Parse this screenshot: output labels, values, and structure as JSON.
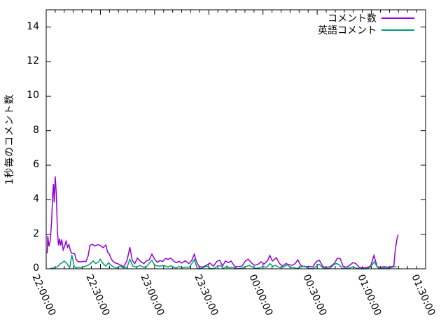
{
  "chart_data": {
    "type": "line",
    "title": "",
    "xlabel": "",
    "ylabel": "1秒毎のコメント数",
    "grid": false,
    "legend_position": "top-right-inside",
    "background_color": "#ffffff",
    "border_color": "#000000",
    "x_axis": {
      "unit": "time (hh:mm:ss)",
      "range_minutes": [
        0,
        210
      ],
      "tick_minutes": [
        0,
        30,
        60,
        90,
        120,
        150,
        180,
        210
      ],
      "tick_labels": [
        "22:00:00",
        "22:30:00",
        "23:00:00",
        "23:30:00",
        "00:00:00",
        "00:30:00",
        "01:00:00",
        "01:30:00"
      ],
      "minor_tick_interval_minutes": 5,
      "tick_label_rotation_deg": 66
    },
    "y_axis": {
      "range": [
        0,
        15
      ],
      "ticks": [
        0,
        2,
        4,
        6,
        8,
        10,
        12,
        14
      ]
    },
    "series": [
      {
        "name": "コメント数",
        "color": "#9400d3",
        "points_t_minutes_after_2200_vs_value": [
          [
            0.6,
            0.9
          ],
          [
            0.9,
            1.9
          ],
          [
            1.5,
            1.3
          ],
          [
            2.2,
            1.6
          ],
          [
            3.0,
            2.7
          ],
          [
            3.6,
            4.3
          ],
          [
            4.0,
            4.9
          ],
          [
            4.4,
            3.85
          ],
          [
            5.0,
            5.35
          ],
          [
            5.6,
            4.3
          ],
          [
            6.2,
            2.2
          ],
          [
            6.8,
            1.35
          ],
          [
            7.4,
            1.75
          ],
          [
            8.0,
            1.35
          ],
          [
            8.6,
            1.7
          ],
          [
            9.4,
            1.1
          ],
          [
            10.2,
            1.3
          ],
          [
            11.0,
            1.6
          ],
          [
            11.8,
            1.25
          ],
          [
            12.6,
            1.4
          ],
          [
            13.4,
            1.05
          ],
          [
            14.2,
            0.88
          ],
          [
            15.0,
            0.9
          ],
          [
            15.8,
            0.85
          ],
          [
            16.5,
            0.55
          ],
          [
            17.5,
            0.42
          ],
          [
            19,
            0.4
          ],
          [
            20.5,
            0.43
          ],
          [
            22,
            0.42
          ],
          [
            23.2,
            0.75
          ],
          [
            24.2,
            1.35
          ],
          [
            25.5,
            1.42
          ],
          [
            27,
            1.32
          ],
          [
            28.5,
            1.4
          ],
          [
            30,
            1.35
          ],
          [
            31.5,
            1.22
          ],
          [
            33,
            1.38
          ],
          [
            34,
            0.95
          ],
          [
            34.8,
            0.89
          ],
          [
            35.8,
            0.62
          ],
          [
            36.8,
            0.45
          ],
          [
            38,
            0.35
          ],
          [
            39.5,
            0.3
          ],
          [
            41,
            0.22
          ],
          [
            43,
            0.12
          ],
          [
            44.8,
            0.5
          ],
          [
            46.3,
            1.25
          ],
          [
            47.6,
            0.5
          ],
          [
            49,
            0.3
          ],
          [
            50.5,
            0.62
          ],
          [
            52,
            0.45
          ],
          [
            54,
            0.3
          ],
          [
            55.5,
            0.45
          ],
          [
            57,
            0.52
          ],
          [
            58.5,
            0.85
          ],
          [
            60,
            0.55
          ],
          [
            61.5,
            0.38
          ],
          [
            63,
            0.48
          ],
          [
            64.5,
            0.42
          ],
          [
            66,
            0.6
          ],
          [
            67.5,
            0.55
          ],
          [
            69,
            0.62
          ],
          [
            70.5,
            0.45
          ],
          [
            72,
            0.35
          ],
          [
            73.5,
            0.44
          ],
          [
            75,
            0.33
          ],
          [
            77,
            0.46
          ],
          [
            79,
            0.3
          ],
          [
            80.6,
            0.5
          ],
          [
            82,
            0.85
          ],
          [
            83.2,
            0.4
          ],
          [
            84.6,
            0.13
          ],
          [
            86.6,
            0.1
          ],
          [
            88.6,
            0.2
          ],
          [
            90.6,
            0.33
          ],
          [
            92.6,
            0.15
          ],
          [
            94.4,
            0.42
          ],
          [
            96,
            0.5
          ],
          [
            97.6,
            0.16
          ],
          [
            99.2,
            0.45
          ],
          [
            100.8,
            0.36
          ],
          [
            102.4,
            0.44
          ],
          [
            104.4,
            0.12
          ],
          [
            106.4,
            0.13
          ],
          [
            108.4,
            0.16
          ],
          [
            110.2,
            0.45
          ],
          [
            111.8,
            0.56
          ],
          [
            113.4,
            0.36
          ],
          [
            115.2,
            0.2
          ],
          [
            117.2,
            0.26
          ],
          [
            119,
            0.4
          ],
          [
            120.6,
            0.28
          ],
          [
            122.4,
            0.44
          ],
          [
            123.8,
            0.77
          ],
          [
            125.2,
            0.45
          ],
          [
            127.4,
            0.64
          ],
          [
            129.2,
            0.3
          ],
          [
            130.8,
            0.16
          ],
          [
            132.6,
            0.3
          ],
          [
            134.2,
            0.25
          ],
          [
            136.2,
            0.2
          ],
          [
            137.8,
            0.3
          ],
          [
            139.3,
            0.52
          ],
          [
            141,
            0.18
          ],
          [
            143,
            0.12
          ],
          [
            145.2,
            0.14
          ],
          [
            147.6,
            0.11
          ],
          [
            149.6,
            0.42
          ],
          [
            151.2,
            0.5
          ],
          [
            153.2,
            0.12
          ],
          [
            155.2,
            0.08
          ],
          [
            157.2,
            0.12
          ],
          [
            159.6,
            0.32
          ],
          [
            161.2,
            0.62
          ],
          [
            162.8,
            0.58
          ],
          [
            164.4,
            0.12
          ],
          [
            166.4,
            0.1
          ],
          [
            168.2,
            0.22
          ],
          [
            169.8,
            0.36
          ],
          [
            171.4,
            0.3
          ],
          [
            173.4,
            0.07
          ],
          [
            175.4,
            0.05
          ],
          [
            177.4,
            0.07
          ],
          [
            179.6,
            0.16
          ],
          [
            181.4,
            0.78
          ],
          [
            183.2,
            0.12
          ],
          [
            185,
            0.07
          ],
          [
            187,
            0.13
          ],
          [
            189,
            0.09
          ],
          [
            191,
            0.12
          ],
          [
            192.4,
            0.16
          ],
          [
            193.2,
            1.05
          ],
          [
            194.2,
            1.75
          ],
          [
            194.8,
            1.97
          ]
        ]
      },
      {
        "name": "英語コメント",
        "color": "#009e73",
        "points_t_minutes_after_2200_vs_value": [
          [
            2,
            0.0
          ],
          [
            4,
            0.05
          ],
          [
            6,
            0.1
          ],
          [
            8,
            0.3
          ],
          [
            10,
            0.45
          ],
          [
            11.5,
            0.3
          ],
          [
            13,
            0.05
          ],
          [
            14.2,
            0.8
          ],
          [
            15.5,
            0.15
          ],
          [
            16.5,
            0.05
          ],
          [
            18,
            0.1
          ],
          [
            19.5,
            0.06
          ],
          [
            21,
            0.12
          ],
          [
            23,
            0.2
          ],
          [
            24.5,
            0.3
          ],
          [
            26,
            0.45
          ],
          [
            27.5,
            0.3
          ],
          [
            29,
            0.4
          ],
          [
            30,
            0.55
          ],
          [
            31.5,
            0.3
          ],
          [
            33,
            0.15
          ],
          [
            34.5,
            0.35
          ],
          [
            36,
            0.2
          ],
          [
            37.5,
            0.1
          ],
          [
            39,
            0.05
          ],
          [
            41,
            0.15
          ],
          [
            43,
            0.05
          ],
          [
            44.8,
            0.1
          ],
          [
            46.3,
            0.55
          ],
          [
            48,
            0.15
          ],
          [
            50,
            0.1
          ],
          [
            52,
            0.2
          ],
          [
            53.5,
            0.1
          ],
          [
            55,
            0.06
          ],
          [
            56.5,
            0.25
          ],
          [
            58.5,
            0.5
          ],
          [
            60,
            0.2
          ],
          [
            61.5,
            0.18
          ],
          [
            63,
            0.15
          ],
          [
            64.5,
            0.2
          ],
          [
            66,
            0.16
          ],
          [
            67.5,
            0.1
          ],
          [
            69,
            0.18
          ],
          [
            70.5,
            0.1
          ],
          [
            72,
            0.05
          ],
          [
            73.5,
            0.14
          ],
          [
            75,
            0.05
          ],
          [
            77,
            0.1
          ],
          [
            79,
            0.08
          ],
          [
            80,
            0.2
          ],
          [
            82,
            0.54
          ],
          [
            83.5,
            0.05
          ],
          [
            85,
            0.0
          ],
          [
            87,
            0.07
          ],
          [
            89,
            0.16
          ],
          [
            91,
            0.0
          ],
          [
            93,
            0.02
          ],
          [
            95,
            0.18
          ],
          [
            96.5,
            0.18
          ],
          [
            98,
            0.02
          ],
          [
            100,
            0.16
          ],
          [
            101.5,
            0.05
          ],
          [
            103,
            0.1
          ],
          [
            105,
            0.0
          ],
          [
            107,
            0.02
          ],
          [
            109,
            0.05
          ],
          [
            111,
            0.14
          ],
          [
            112.5,
            0.2
          ],
          [
            114,
            0.11
          ],
          [
            116,
            0.03
          ],
          [
            118,
            0.05
          ],
          [
            120,
            0.14
          ],
          [
            121.8,
            0.07
          ],
          [
            123.8,
            0.3
          ],
          [
            125.5,
            0.14
          ],
          [
            127,
            0.2
          ],
          [
            128.5,
            0.1
          ],
          [
            130,
            0.05
          ],
          [
            132,
            0.14
          ],
          [
            133.5,
            0.23
          ],
          [
            135,
            0.1
          ],
          [
            137,
            0.07
          ],
          [
            139,
            0.02
          ],
          [
            141,
            0.1
          ],
          [
            143,
            0.16
          ],
          [
            145,
            0.03
          ],
          [
            147.5,
            0.0
          ],
          [
            149.5,
            0.14
          ],
          [
            151,
            0.27
          ],
          [
            153,
            0.07
          ],
          [
            155,
            0.0
          ],
          [
            157,
            0.02
          ],
          [
            159.5,
            0.27
          ],
          [
            161,
            0.3
          ],
          [
            162.5,
            0.2
          ],
          [
            164,
            0.0
          ],
          [
            166,
            0.02
          ],
          [
            168,
            0.05
          ],
          [
            169.5,
            0.11
          ],
          [
            171,
            0.07
          ],
          [
            173,
            0.0
          ],
          [
            175,
            0.0
          ],
          [
            177,
            0.0
          ],
          [
            179.5,
            0.1
          ],
          [
            181.5,
            0.41
          ],
          [
            183.5,
            0.07
          ],
          [
            185,
            0.0
          ],
          [
            187,
            0.05
          ],
          [
            189,
            0.02
          ],
          [
            191,
            0.07
          ],
          [
            192.5,
            0.12
          ],
          [
            194,
            0.1
          ]
        ]
      }
    ]
  }
}
